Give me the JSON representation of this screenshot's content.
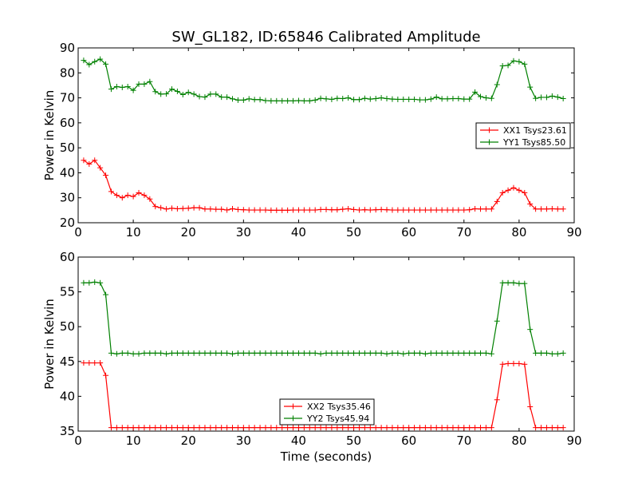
{
  "chart_data": [
    {
      "type": "line",
      "title": "SW_GL182, ID:65846 Calibrated Amplitude",
      "xlabel": "",
      "ylabel": "Power in Kelvin",
      "xlim": [
        0,
        90
      ],
      "ylim": [
        20,
        90
      ],
      "xticks": [
        0,
        10,
        20,
        30,
        40,
        50,
        60,
        70,
        80,
        90
      ],
      "yticks": [
        20,
        30,
        40,
        50,
        60,
        70,
        80,
        90
      ],
      "legend_position": "right",
      "series": [
        {
          "name": "XX1 Tsys23.61",
          "color": "#ff0000",
          "x": [
            1,
            2,
            3,
            4,
            5,
            6,
            7,
            8,
            9,
            10,
            11,
            12,
            13,
            14,
            15,
            16,
            17,
            18,
            19,
            20,
            21,
            22,
            23,
            24,
            25,
            26,
            27,
            28,
            29,
            30,
            31,
            32,
            33,
            34,
            35,
            36,
            37,
            38,
            39,
            40,
            41,
            42,
            43,
            44,
            45,
            46,
            47,
            48,
            49,
            50,
            51,
            52,
            53,
            54,
            55,
            56,
            57,
            58,
            59,
            60,
            61,
            62,
            63,
            64,
            65,
            66,
            67,
            68,
            69,
            70,
            71,
            72,
            73,
            74,
            75,
            76,
            77,
            78,
            79,
            80,
            81,
            82,
            83,
            84,
            85,
            86,
            87,
            88
          ],
          "y": [
            45,
            43.5,
            45,
            42,
            39,
            32.5,
            31,
            30,
            31,
            30.5,
            32,
            31,
            29.5,
            26.5,
            26,
            25.5,
            25.8,
            25.6,
            25.7,
            25.8,
            26,
            26,
            25.5,
            25.5,
            25.4,
            25.4,
            25.1,
            25.6,
            25.3,
            25.2,
            25.1,
            25.1,
            25.1,
            25.1,
            25,
            25,
            25,
            25,
            25.1,
            25.1,
            25.1,
            25.1,
            25.1,
            25.3,
            25.3,
            25.2,
            25.2,
            25.4,
            25.6,
            25.3,
            25.1,
            25.2,
            25.1,
            25.2,
            25.3,
            25.2,
            25.1,
            25.1,
            25.1,
            25.1,
            25.1,
            25.1,
            25.1,
            25.1,
            25.1,
            25.1,
            25.1,
            25.1,
            25.1,
            25.1,
            25.2,
            25.6,
            25.5,
            25.5,
            25.5,
            28.5,
            32,
            33,
            34,
            33,
            32,
            27.5,
            25.5,
            25.5,
            25.5,
            25.6,
            25.5,
            25.5
          ]
        },
        {
          "name": "YY1 Tsys85.50",
          "color": "#008000",
          "x": [
            1,
            2,
            3,
            4,
            5,
            6,
            7,
            8,
            9,
            10,
            11,
            12,
            13,
            14,
            15,
            16,
            17,
            18,
            19,
            20,
            21,
            22,
            23,
            24,
            25,
            26,
            27,
            28,
            29,
            30,
            31,
            32,
            33,
            34,
            35,
            36,
            37,
            38,
            39,
            40,
            41,
            42,
            43,
            44,
            45,
            46,
            47,
            48,
            49,
            50,
            51,
            52,
            53,
            54,
            55,
            56,
            57,
            58,
            59,
            60,
            61,
            62,
            63,
            64,
            65,
            66,
            67,
            68,
            69,
            70,
            71,
            72,
            73,
            74,
            75,
            76,
            77,
            78,
            79,
            80,
            81,
            82,
            83,
            84,
            85,
            86,
            87,
            88
          ],
          "y": [
            85,
            83.3,
            84.5,
            85.5,
            83.5,
            73.5,
            74.5,
            74.2,
            74.5,
            73,
            75.5,
            75.5,
            76.5,
            72.5,
            71.5,
            71.6,
            73.5,
            72.6,
            71.3,
            72.2,
            71.5,
            70.5,
            70.3,
            71.5,
            71.5,
            70.3,
            70.3,
            69.6,
            69.1,
            69.1,
            69.6,
            69.3,
            69.3,
            68.9,
            68.8,
            68.8,
            68.8,
            68.8,
            68.8,
            68.9,
            68.8,
            68.8,
            69.1,
            69.8,
            69.6,
            69.4,
            69.8,
            69.7,
            70,
            69.3,
            69.3,
            69.8,
            69.5,
            69.7,
            70,
            69.7,
            69.5,
            69.4,
            69.4,
            69.4,
            69.4,
            69.2,
            69.2,
            69.5,
            70.3,
            69.6,
            69.6,
            69.7,
            69.7,
            69.5,
            69.5,
            72.3,
            70.5,
            70,
            69.8,
            75.3,
            82.8,
            83,
            84.8,
            84.5,
            83.5,
            74.3,
            69.8,
            70.2,
            70.2,
            70.7,
            70.3,
            69.7
          ]
        }
      ]
    },
    {
      "type": "line",
      "title": "",
      "xlabel": "Time (seconds)",
      "ylabel": "Power in Kelvin",
      "xlim": [
        0,
        90
      ],
      "ylim": [
        35,
        60
      ],
      "xticks": [
        0,
        10,
        20,
        30,
        40,
        50,
        60,
        70,
        80,
        90
      ],
      "yticks": [
        35,
        40,
        45,
        50,
        55,
        60
      ],
      "legend_position": "bottom-center",
      "series": [
        {
          "name": "XX2 Tsys35.46",
          "color": "#ff0000",
          "x": [
            1,
            2,
            3,
            4,
            5,
            6,
            7,
            8,
            9,
            10,
            11,
            12,
            13,
            14,
            15,
            16,
            17,
            18,
            19,
            20,
            21,
            22,
            23,
            24,
            25,
            26,
            27,
            28,
            29,
            30,
            31,
            32,
            33,
            34,
            35,
            36,
            37,
            38,
            39,
            40,
            41,
            42,
            43,
            44,
            45,
            46,
            47,
            48,
            49,
            50,
            51,
            52,
            53,
            54,
            55,
            56,
            57,
            58,
            59,
            60,
            61,
            62,
            63,
            64,
            65,
            66,
            67,
            68,
            69,
            70,
            71,
            72,
            73,
            74,
            75,
            76,
            77,
            78,
            79,
            80,
            81,
            82,
            83,
            84,
            85,
            86,
            87,
            88
          ],
          "y": [
            44.8,
            44.8,
            44.8,
            44.8,
            43,
            35.5,
            35.5,
            35.5,
            35.5,
            35.5,
            35.5,
            35.5,
            35.5,
            35.5,
            35.5,
            35.5,
            35.5,
            35.5,
            35.5,
            35.5,
            35.5,
            35.5,
            35.5,
            35.5,
            35.5,
            35.5,
            35.5,
            35.5,
            35.5,
            35.5,
            35.5,
            35.5,
            35.5,
            35.5,
            35.5,
            35.5,
            35.5,
            35.5,
            35.5,
            35.5,
            35.5,
            35.5,
            35.5,
            35.5,
            35.5,
            35.5,
            35.5,
            35.5,
            35.5,
            35.5,
            35.5,
            35.5,
            35.5,
            35.5,
            35.5,
            35.5,
            35.5,
            35.5,
            35.5,
            35.5,
            35.5,
            35.5,
            35.5,
            35.5,
            35.5,
            35.5,
            35.5,
            35.5,
            35.5,
            35.5,
            35.5,
            35.5,
            35.5,
            35.5,
            35.5,
            39.5,
            44.6,
            44.7,
            44.7,
            44.7,
            44.6,
            38.5,
            35.5,
            35.5,
            35.5,
            35.5,
            35.5,
            35.5
          ]
        },
        {
          "name": "YY2 Tsys45.94",
          "color": "#008000",
          "x": [
            1,
            2,
            3,
            4,
            5,
            6,
            7,
            8,
            9,
            10,
            11,
            12,
            13,
            14,
            15,
            16,
            17,
            18,
            19,
            20,
            21,
            22,
            23,
            24,
            25,
            26,
            27,
            28,
            29,
            30,
            31,
            32,
            33,
            34,
            35,
            36,
            37,
            38,
            39,
            40,
            41,
            42,
            43,
            44,
            45,
            46,
            47,
            48,
            49,
            50,
            51,
            52,
            53,
            54,
            55,
            56,
            57,
            58,
            59,
            60,
            61,
            62,
            63,
            64,
            65,
            66,
            67,
            68,
            69,
            70,
            71,
            72,
            73,
            74,
            75,
            76,
            77,
            78,
            79,
            80,
            81,
            82,
            83,
            84,
            85,
            86,
            87,
            88
          ],
          "y": [
            56.3,
            56.3,
            56.4,
            56.3,
            54.6,
            46.2,
            46.1,
            46.2,
            46.2,
            46.1,
            46.1,
            46.2,
            46.2,
            46.2,
            46.2,
            46.1,
            46.2,
            46.2,
            46.2,
            46.2,
            46.2,
            46.2,
            46.2,
            46.2,
            46.2,
            46.2,
            46.2,
            46.1,
            46.2,
            46.2,
            46.2,
            46.2,
            46.2,
            46.2,
            46.2,
            46.2,
            46.2,
            46.2,
            46.2,
            46.2,
            46.2,
            46.2,
            46.2,
            46.1,
            46.2,
            46.2,
            46.2,
            46.2,
            46.2,
            46.2,
            46.2,
            46.2,
            46.2,
            46.2,
            46.2,
            46.1,
            46.2,
            46.2,
            46.1,
            46.2,
            46.2,
            46.2,
            46.1,
            46.2,
            46.2,
            46.2,
            46.2,
            46.2,
            46.2,
            46.2,
            46.2,
            46.2,
            46.2,
            46.2,
            46.1,
            50.8,
            56.3,
            56.3,
            56.3,
            56.2,
            56.2,
            49.6,
            46.2,
            46.2,
            46.2,
            46.1,
            46.1,
            46.2
          ]
        }
      ]
    }
  ]
}
